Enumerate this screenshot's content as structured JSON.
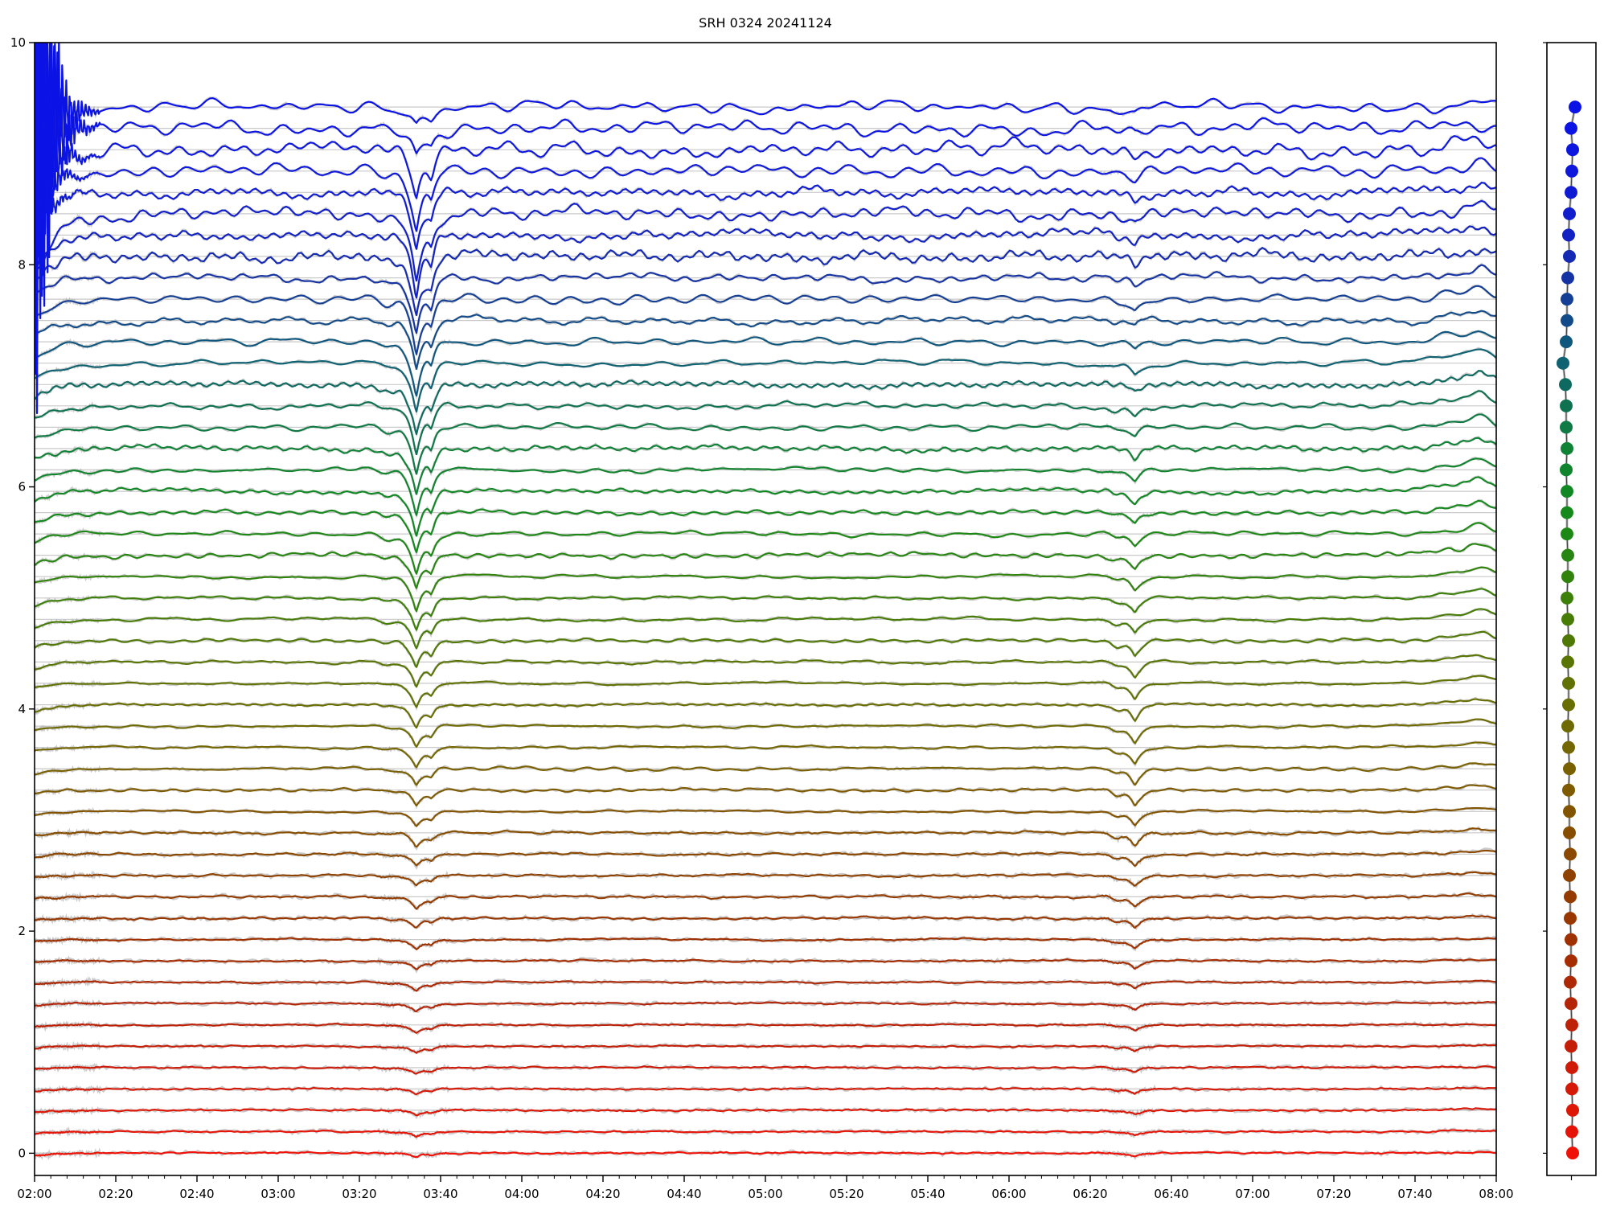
{
  "window": {
    "title": "SRH 0324 20241124"
  },
  "chart_data": {
    "type": "line",
    "title": "SRH 0324 20241124",
    "xlabel": "",
    "ylabel": "",
    "x_axis": {
      "tick_labels": [
        "02:00",
        "02:20",
        "02:40",
        "03:00",
        "03:20",
        "03:40",
        "04:00",
        "04:20",
        "04:40",
        "05:00",
        "05:20",
        "05:40",
        "06:00",
        "06:20",
        "06:40",
        "07:00",
        "07:20",
        "07:40",
        "08:00"
      ],
      "tick_interval_min": 20,
      "minor_tick_interval_min": 4,
      "total_minutes": 360,
      "start_time": "02:00",
      "end_time": "08:00"
    },
    "y_axis": {
      "ticks": [
        0,
        2,
        4,
        6,
        8,
        10
      ],
      "ylim": [
        -0.2,
        10
      ]
    },
    "n_traces": 50,
    "trace_spacing": 0.1922,
    "baselines": [
      9.42,
      9.228,
      9.036,
      8.843,
      8.651,
      8.459,
      8.267,
      8.075,
      7.882,
      7.69,
      7.498,
      7.306,
      7.114,
      6.921,
      6.729,
      6.537,
      6.345,
      6.153,
      5.96,
      5.768,
      5.576,
      5.384,
      5.192,
      4.999,
      4.807,
      4.615,
      4.423,
      4.231,
      4.038,
      3.846,
      3.654,
      3.462,
      3.27,
      3.077,
      2.885,
      2.693,
      2.501,
      2.309,
      2.116,
      1.924,
      1.732,
      1.54,
      1.348,
      1.155,
      0.963,
      0.771,
      0.579,
      0.387,
      0.194,
      0.002
    ],
    "color_stops": [
      {
        "t": 0.0,
        "c": "#0a12e6"
      },
      {
        "t": 0.06,
        "c": "#0e18dc"
      },
      {
        "t": 0.12,
        "c": "#1120c4"
      },
      {
        "t": 0.16,
        "c": "#1631a6"
      },
      {
        "t": 0.2,
        "c": "#13498a"
      },
      {
        "t": 0.24,
        "c": "#0e6076"
      },
      {
        "t": 0.28,
        "c": "#0e7054"
      },
      {
        "t": 0.33,
        "c": "#108334"
      },
      {
        "t": 0.38,
        "c": "#128a1e"
      },
      {
        "t": 0.44,
        "c": "#2c850e"
      },
      {
        "t": 0.5,
        "c": "#4c7a06"
      },
      {
        "t": 0.56,
        "c": "#657002"
      },
      {
        "t": 0.62,
        "c": "#766400"
      },
      {
        "t": 0.68,
        "c": "#855200"
      },
      {
        "t": 0.74,
        "c": "#904000"
      },
      {
        "t": 0.8,
        "c": "#a03000"
      },
      {
        "t": 0.86,
        "c": "#b52408"
      },
      {
        "t": 0.92,
        "c": "#cf1a06"
      },
      {
        "t": 1.0,
        "c": "#ee1207"
      }
    ],
    "events": {
      "main_dip": {
        "time": "03:34",
        "minute": 94,
        "secondary_minute": 97.7,
        "precursor_minute": 87
      },
      "secondary_dip": {
        "time": "06:31",
        "minute": 271,
        "pre_minute": 266.5
      },
      "end_bump": {
        "time": "07:56",
        "minute": 356
      },
      "noisy_start": {
        "from": "02:00",
        "to": "02:14",
        "affected_traces": "top blue channels"
      }
    },
    "dip_main_depths": [
      0.14,
      0.22,
      0.42,
      0.48,
      0.52,
      0.55,
      0.55,
      0.52,
      0.5,
      0.48,
      0.47,
      0.46,
      0.45,
      0.44,
      0.43,
      0.42,
      0.41,
      0.4,
      0.38,
      0.36,
      0.34,
      0.32,
      0.3,
      0.28,
      0.26,
      0.245,
      0.23,
      0.215,
      0.2,
      0.185,
      0.17,
      0.155,
      0.14,
      0.13,
      0.12,
      0.11,
      0.1,
      0.095,
      0.09,
      0.085,
      0.08,
      0.075,
      0.07,
      0.065,
      0.06,
      0.055,
      0.05,
      0.045,
      0.04,
      0.035
    ],
    "dip2_depths": [
      0.05,
      0.05,
      0.05,
      0.06,
      0.06,
      0.06,
      0.07,
      0.07,
      0.07,
      0.08,
      0.08,
      0.08,
      0.09,
      0.09,
      0.09,
      0.1,
      0.1,
      0.1,
      0.11,
      0.11,
      0.11,
      0.12,
      0.12,
      0.13,
      0.13,
      0.14,
      0.14,
      0.15,
      0.15,
      0.15,
      0.15,
      0.14,
      0.14,
      0.13,
      0.12,
      0.11,
      0.1,
      0.09,
      0.08,
      0.07,
      0.065,
      0.06,
      0.055,
      0.05,
      0.045,
      0.04,
      0.04,
      0.035,
      0.03,
      0.03
    ],
    "end_bump_heights": [
      0.05,
      0.05,
      0.06,
      0.06,
      0.06,
      0.07,
      0.07,
      0.08,
      0.09,
      0.1,
      0.1,
      0.11,
      0.11,
      0.11,
      0.11,
      0.11,
      0.11,
      0.1,
      0.1,
      0.1,
      0.09,
      0.09,
      0.08,
      0.08,
      0.07,
      0.07,
      0.06,
      0.06,
      0.05,
      0.05,
      0.04,
      0.04,
      0.035,
      0.03,
      0.03,
      0.025,
      0.02,
      0.02,
      0.015,
      0.015,
      0.01,
      0.01,
      0.01,
      0.01,
      0.01,
      0.01,
      0.01,
      0.01,
      0.01,
      0.01
    ],
    "wiggle_amps": [
      0.045,
      0.045,
      0.042,
      0.04,
      0.038,
      0.036,
      0.036,
      0.034,
      0.032,
      0.03,
      0.028,
      0.026,
      0.025,
      0.024,
      0.023,
      0.022,
      0.021,
      0.02,
      0.019,
      0.018,
      0.017,
      0.016,
      0.015,
      0.014,
      0.013,
      0.013,
      0.012,
      0.012,
      0.011,
      0.011,
      0.01,
      0.01,
      0.009,
      0.009,
      0.008,
      0.008,
      0.008,
      0.007,
      0.007,
      0.007,
      0.006,
      0.006,
      0.006,
      0.006,
      0.005,
      0.005,
      0.005,
      0.005,
      0.005,
      0.005
    ],
    "settle_offsets": [
      0,
      0,
      0.3,
      0.3,
      0.25,
      0.55,
      0.35,
      0.2,
      0.15,
      0.15,
      0.15,
      0.14,
      0.13,
      0.12,
      0.12,
      0.11,
      0.1,
      0.1,
      0.09,
      0.09,
      0.08,
      0.08,
      0.07,
      0.07,
      0.06,
      0.06,
      0.05,
      0.05,
      0.05,
      0.04,
      0.04,
      0.04,
      0.03,
      0.03,
      0.03,
      0.03,
      0.02,
      0.02,
      0.02,
      0.02,
      0.02,
      0.02,
      0.02,
      0.02,
      0.02,
      0.02,
      0.02,
      0.02,
      0.02,
      0.02
    ],
    "wild_start_amps": [
      3.0,
      2.9,
      1.2,
      0.5,
      0.25
    ],
    "grid_color": "#c9c9c9",
    "raw_halo_color": "#aaaaaa",
    "axis_color": "#000000",
    "background": "#ffffff",
    "side_panel": {
      "dot_radius": 8,
      "dot_dx": [
        6,
        1,
        3,
        2,
        1,
        -1,
        -2,
        -1,
        -3,
        -4,
        -4,
        -5,
        -9,
        -6,
        -5,
        -5,
        -4,
        -5,
        -4,
        -4,
        -4,
        -3,
        -3,
        -4,
        -3,
        -2,
        -3,
        -2,
        -2,
        -3,
        -2,
        -1,
        -2,
        -1,
        -1,
        0,
        -1,
        0,
        0,
        1,
        1,
        0,
        1,
        2,
        1,
        2,
        2,
        3,
        2,
        3
      ],
      "line_color": "#444444",
      "halo_color": "#a0a0a0",
      "y_ticks": [
        0,
        2,
        4,
        6,
        8,
        10
      ]
    }
  }
}
